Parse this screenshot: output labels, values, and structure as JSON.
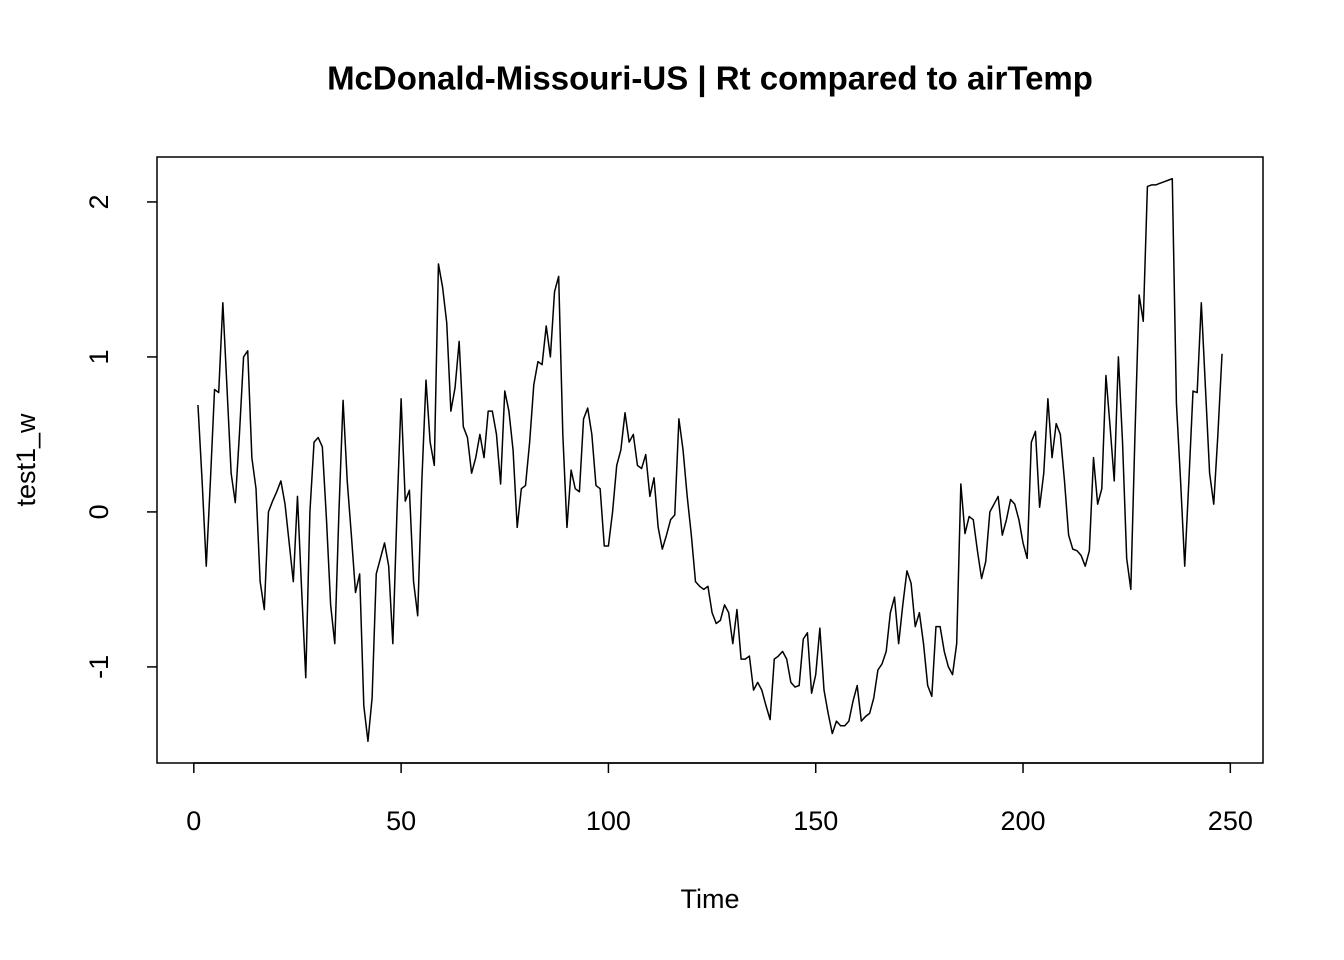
{
  "chart_data": {
    "type": "line",
    "title": "McDonald-Missouri-US | Rt compared to airTemp",
    "x_label": "Time",
    "y_label": "test1_w",
    "color": "#000000",
    "grid": false,
    "xlim": [
      -8.88,
      257.88
    ],
    "ylim": [
      -1.62,
      2.29
    ],
    "xticks": [
      0,
      50,
      100,
      150,
      200,
      250
    ],
    "yticks": [
      -1,
      0,
      1,
      2
    ],
    "x": [
      1,
      2,
      3,
      4,
      5,
      6,
      7,
      8,
      9,
      10,
      11,
      12,
      13,
      14,
      15,
      16,
      17,
      18,
      19,
      20,
      21,
      22,
      23,
      24,
      25,
      26,
      27,
      28,
      29,
      30,
      31,
      32,
      33,
      34,
      35,
      36,
      37,
      38,
      39,
      40,
      41,
      42,
      43,
      44,
      45,
      46,
      47,
      48,
      49,
      50,
      51,
      52,
      53,
      54,
      55,
      56,
      57,
      58,
      59,
      60,
      61,
      62,
      63,
      64,
      65,
      66,
      67,
      68,
      69,
      70,
      71,
      72,
      73,
      74,
      75,
      76,
      77,
      78,
      79,
      80,
      81,
      82,
      83,
      84,
      85,
      86,
      87,
      88,
      89,
      90,
      91,
      92,
      93,
      94,
      95,
      96,
      97,
      98,
      99,
      100,
      101,
      102,
      103,
      104,
      105,
      106,
      107,
      108,
      109,
      110,
      111,
      112,
      113,
      114,
      115,
      116,
      117,
      118,
      119,
      120,
      121,
      122,
      123,
      124,
      125,
      126,
      127,
      128,
      129,
      130,
      131,
      132,
      133,
      134,
      135,
      136,
      137,
      138,
      139,
      140,
      141,
      142,
      143,
      144,
      145,
      146,
      147,
      148,
      149,
      150,
      151,
      152,
      153,
      154,
      155,
      156,
      157,
      158,
      159,
      160,
      161,
      162,
      163,
      164,
      165,
      166,
      167,
      168,
      169,
      170,
      171,
      172,
      173,
      174,
      175,
      176,
      177,
      178,
      179,
      180,
      181,
      182,
      183,
      184,
      185,
      186,
      187,
      188,
      189,
      190,
      191,
      192,
      193,
      194,
      195,
      196,
      197,
      198,
      199,
      200,
      201,
      202,
      203,
      204,
      205,
      206,
      207,
      208,
      209,
      210,
      211,
      212,
      213,
      214,
      215,
      216,
      217,
      218,
      219,
      220,
      221,
      222,
      223,
      224,
      225,
      226,
      227,
      228,
      229,
      230,
      231,
      232,
      233,
      234,
      235,
      236,
      237,
      238,
      239,
      240,
      241,
      242,
      243,
      244,
      245,
      246,
      247,
      248
    ],
    "values": [
      0.69,
      0.2,
      -0.35,
      0.2,
      0.79,
      0.77,
      1.35,
      0.8,
      0.25,
      0.06,
      0.5,
      1.0,
      1.04,
      0.35,
      0.15,
      -0.45,
      -0.63,
      0.0,
      0.07,
      0.13,
      0.2,
      0.05,
      -0.2,
      -0.45,
      0.1,
      -0.5,
      -1.07,
      0.0,
      0.45,
      0.48,
      0.42,
      -0.05,
      -0.6,
      -0.85,
      0.0,
      0.72,
      0.2,
      -0.15,
      -0.52,
      -0.4,
      -1.25,
      -1.48,
      -1.2,
      -0.4,
      -0.3,
      -0.2,
      -0.35,
      -0.85,
      0.0,
      0.73,
      0.07,
      0.14,
      -0.45,
      -0.67,
      0.2,
      0.85,
      0.45,
      0.3,
      1.6,
      1.45,
      1.22,
      0.65,
      0.8,
      1.1,
      0.55,
      0.48,
      0.25,
      0.35,
      0.5,
      0.35,
      0.65,
      0.65,
      0.5,
      0.18,
      0.78,
      0.65,
      0.4,
      -0.1,
      0.15,
      0.17,
      0.45,
      0.82,
      0.97,
      0.95,
      1.2,
      1.0,
      1.42,
      1.52,
      0.5,
      -0.1,
      0.27,
      0.15,
      0.13,
      0.6,
      0.67,
      0.5,
      0.17,
      0.15,
      -0.22,
      -0.22,
      0.0,
      0.3,
      0.4,
      0.64,
      0.45,
      0.5,
      0.3,
      0.28,
      0.37,
      0.1,
      0.22,
      -0.1,
      -0.24,
      -0.15,
      -0.05,
      -0.02,
      0.6,
      0.4,
      0.1,
      -0.15,
      -0.45,
      -0.48,
      -0.5,
      -0.48,
      -0.65,
      -0.72,
      -0.7,
      -0.6,
      -0.65,
      -0.85,
      -0.63,
      -0.95,
      -0.95,
      -0.93,
      -1.15,
      -1.1,
      -1.15,
      -1.25,
      -1.34,
      -0.95,
      -0.93,
      -0.9,
      -0.95,
      -1.1,
      -1.13,
      -1.12,
      -0.82,
      -0.78,
      -1.17,
      -1.05,
      -0.75,
      -1.15,
      -1.3,
      -1.43,
      -1.35,
      -1.38,
      -1.38,
      -1.35,
      -1.22,
      -1.12,
      -1.35,
      -1.32,
      -1.3,
      -1.2,
      -1.02,
      -0.98,
      -0.9,
      -0.65,
      -0.55,
      -0.85,
      -0.6,
      -0.38,
      -0.46,
      -0.74,
      -0.65,
      -0.85,
      -1.12,
      -1.19,
      -0.74,
      -0.74,
      -0.9,
      -1.0,
      -1.05,
      -0.85,
      0.18,
      -0.14,
      -0.03,
      -0.05,
      -0.25,
      -0.43,
      -0.32,
      0.0,
      0.05,
      0.1,
      -0.15,
      -0.05,
      0.08,
      0.05,
      -0.05,
      -0.2,
      -0.3,
      0.45,
      0.52,
      0.03,
      0.25,
      0.73,
      0.35,
      0.57,
      0.5,
      0.2,
      -0.15,
      -0.24,
      -0.25,
      -0.28,
      -0.35,
      -0.25,
      0.35,
      0.05,
      0.15,
      0.88,
      0.55,
      0.2,
      1.0,
      0.45,
      -0.3,
      -0.5,
      0.5,
      1.4,
      1.23,
      2.1,
      2.11,
      2.11,
      2.12,
      2.13,
      2.14,
      2.15,
      0.7,
      0.2,
      -0.35,
      0.2,
      0.78,
      0.77,
      1.35,
      0.8,
      0.25,
      0.05,
      0.5,
      1.02
    ]
  }
}
